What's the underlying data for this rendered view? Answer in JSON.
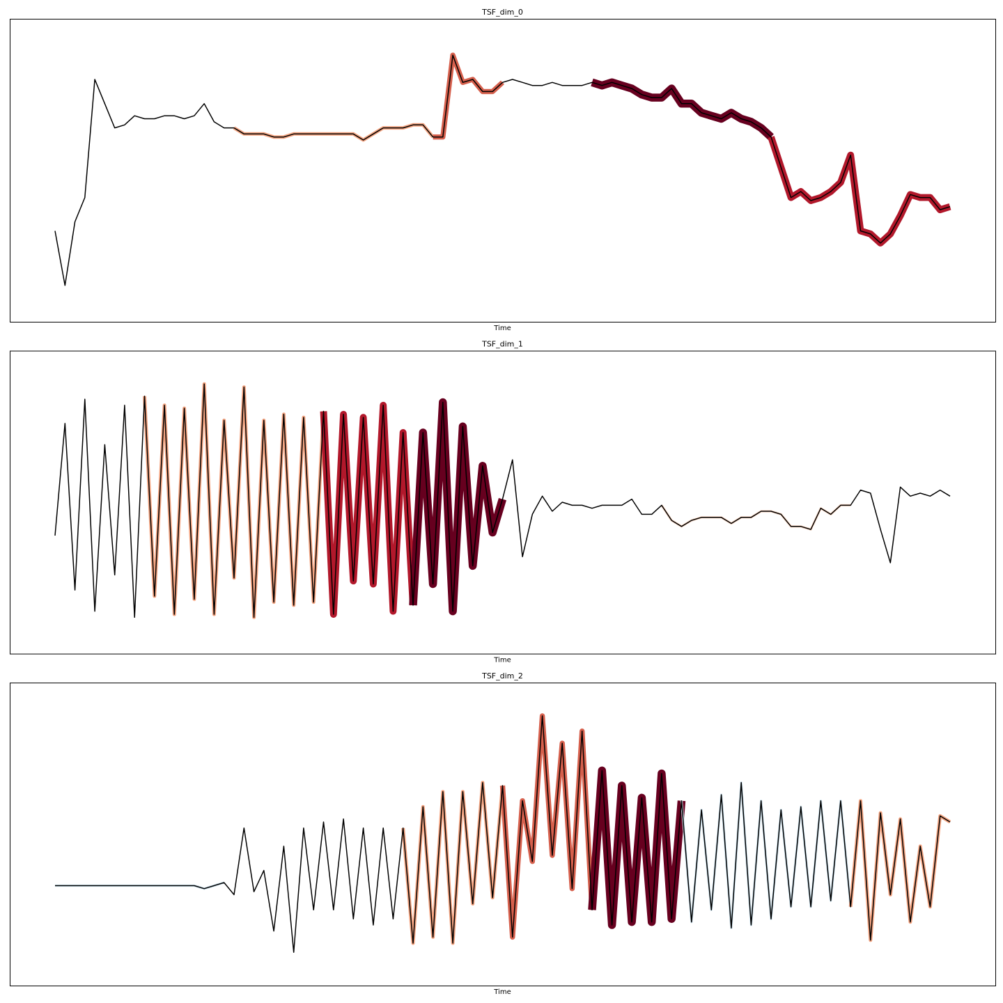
{
  "chart_data": [
    {
      "type": "line",
      "title": "TSF_dim_0",
      "xlabel": "Time",
      "color": "#000000",
      "ylim": [
        0,
        100
      ],
      "values": [
        30,
        12,
        33,
        41,
        80,
        72,
        64,
        65,
        68,
        67,
        67,
        68,
        68,
        67,
        68,
        72,
        66,
        64,
        64,
        62,
        62,
        62,
        61,
        61,
        62,
        62,
        62,
        62,
        62,
        62,
        62,
        60,
        62,
        64,
        64,
        64,
        65,
        65,
        61,
        61,
        88,
        79,
        80,
        76,
        76,
        79,
        80,
        79,
        78,
        78,
        79,
        78,
        78,
        78,
        79,
        78,
        79,
        78,
        77,
        75,
        74,
        74,
        77,
        72,
        72,
        69,
        68,
        67,
        69,
        67,
        66,
        64,
        61,
        51,
        41,
        43,
        40,
        41,
        43,
        46,
        55,
        30,
        29,
        26,
        29,
        35,
        42,
        41,
        41,
        37,
        38
      ],
      "highlights": [
        {
          "color": "#f4a582",
          "start": 18,
          "end": 38
        },
        {
          "color": "#d6604d",
          "start": 38,
          "end": 45
        },
        {
          "color": "#67001f",
          "start": 54,
          "end": 72
        },
        {
          "color": "#b2182b",
          "start": 72,
          "end": 90
        }
      ]
    },
    {
      "type": "line",
      "title": "TSF_dim_1",
      "xlabel": "Time",
      "color": "#000000",
      "ylim": [
        0,
        100
      ],
      "values": [
        39,
        76,
        21,
        84,
        14,
        69,
        26,
        82,
        12,
        85,
        19,
        82,
        13,
        81,
        18,
        89,
        13,
        77,
        25,
        88,
        12,
        77,
        17,
        79,
        16,
        78,
        17,
        80,
        13,
        79,
        24,
        78,
        23,
        82,
        14,
        73,
        16,
        73,
        23,
        83,
        14,
        75,
        29,
        62,
        40,
        51,
        64,
        32,
        46,
        52,
        47,
        50,
        49,
        49,
        48,
        49,
        49,
        49,
        51,
        46,
        46,
        49,
        44,
        42,
        44,
        45,
        45,
        45,
        43,
        45,
        45,
        47,
        47,
        46,
        42,
        42,
        41,
        48,
        46,
        49,
        49,
        54,
        53,
        41,
        30,
        55,
        52,
        53,
        52,
        54,
        52
      ],
      "highlights": [
        {
          "color": "#f4a582",
          "start": 9,
          "end": 27
        },
        {
          "color": "#b2182b",
          "start": 27,
          "end": 36
        },
        {
          "color": "#67001f",
          "start": 36,
          "end": 45
        },
        {
          "color": "#fddbc7",
          "start": 61,
          "end": 80
        }
      ]
    },
    {
      "type": "line",
      "title": "TSF_dim_2",
      "xlabel": "Time",
      "color": "#000000",
      "ylim": [
        0,
        100
      ],
      "values": [
        33,
        33,
        33,
        33,
        33,
        33,
        33,
        33,
        33,
        33,
        33,
        33,
        33,
        33,
        33,
        32,
        33,
        34,
        30,
        52,
        31,
        38,
        18,
        46,
        11,
        52,
        25,
        54,
        25,
        55,
        22,
        52,
        20,
        52,
        22,
        52,
        14,
        59,
        16,
        64,
        14,
        64,
        27,
        67,
        29,
        66,
        16,
        61,
        41,
        89,
        43,
        80,
        32,
        84,
        25,
        71,
        20,
        66,
        21,
        62,
        21,
        70,
        22,
        61,
        21,
        58,
        25,
        63,
        19,
        67,
        20,
        61,
        22,
        58,
        26,
        59,
        26,
        61,
        28,
        61,
        26,
        61,
        15,
        57,
        30,
        55,
        21,
        46,
        26,
        56,
        54
      ],
      "highlights": [
        {
          "color": "#d1e5f0",
          "start": 0,
          "end": 17
        },
        {
          "color": "#f4a582",
          "start": 35,
          "end": 45
        },
        {
          "color": "#d6604d",
          "start": 45,
          "end": 54
        },
        {
          "color": "#67001f",
          "start": 54,
          "end": 63
        },
        {
          "color": "#d1e5f0",
          "start": 63,
          "end": 80
        },
        {
          "color": "#f4a582",
          "start": 80,
          "end": 90
        }
      ]
    }
  ]
}
